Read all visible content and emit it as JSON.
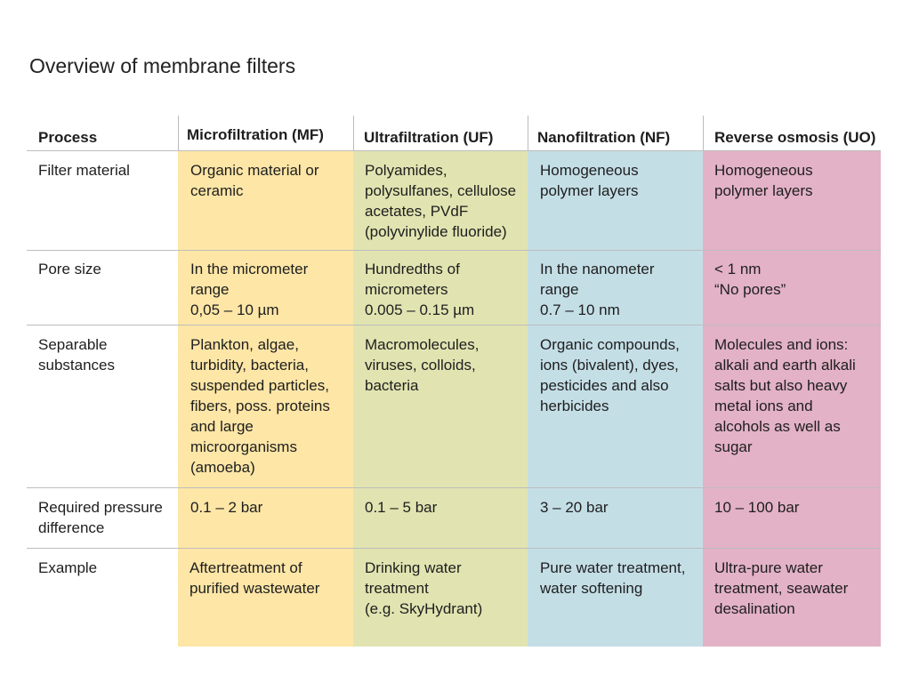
{
  "title": "Overview of membrane filters",
  "colors": {
    "mf": "#fde6a6",
    "uf": "#e1e4b1",
    "nf": "#c4dee6",
    "ro": "#e3b2c6"
  },
  "headers": [
    "Process",
    "Microfiltration (MF)",
    "Ultrafiltration (UF)",
    "Nanofiltration (NF)",
    "Reverse osmosis (UO)"
  ],
  "rows": [
    {
      "label": "Filter material",
      "cells": [
        "Organic material or\nceramic",
        "Polyamides,\npolysulfanes, cellulose\nacetates, PVdF\n(polyvinylide fluoride)",
        "Homogeneous\npolymer layers",
        "Homogeneous\npolymer layers"
      ]
    },
    {
      "label": "Pore size",
      "cells": [
        "In the micrometer\nrange\n0,05 – 10 µm",
        "Hundredths of\nmicrometers\n0.005 – 0.15 µm",
        "In the nanometer\nrange\n0.7 – 10 nm",
        "< 1 nm\n“No pores”"
      ]
    },
    {
      "label": "Separable\nsubstances",
      "cells": [
        "Plankton, algae,\nturbidity, bacteria,\nsuspended particles,\nfibers, poss. proteins\nand large\nmicroorganisms\n(amoeba)",
        "Macromolecules,\nviruses, colloids,\nbacteria",
        "Organic compounds,\nions (bivalent), dyes,\npesticides and also\nherbicides",
        "Molecules and ions:\nalkali and earth alkali\nsalts but also heavy\nmetal ions and\nalcohols as well as\nsugar"
      ]
    },
    {
      "label": "Required pressure\ndifference",
      "cells": [
        "0.1 – 2 bar",
        "0.1 – 5 bar",
        "3 – 20 bar",
        "10 – 100 bar"
      ]
    },
    {
      "label": "Example",
      "cells": [
        "Aftertreatment of\npurified wastewater",
        "Drinking water\ntreatment\n(e.g. SkyHydrant)",
        "Pure water treatment,\nwater softening",
        "Ultra-pure water\ntreatment, seawater\ndesalination"
      ]
    }
  ]
}
